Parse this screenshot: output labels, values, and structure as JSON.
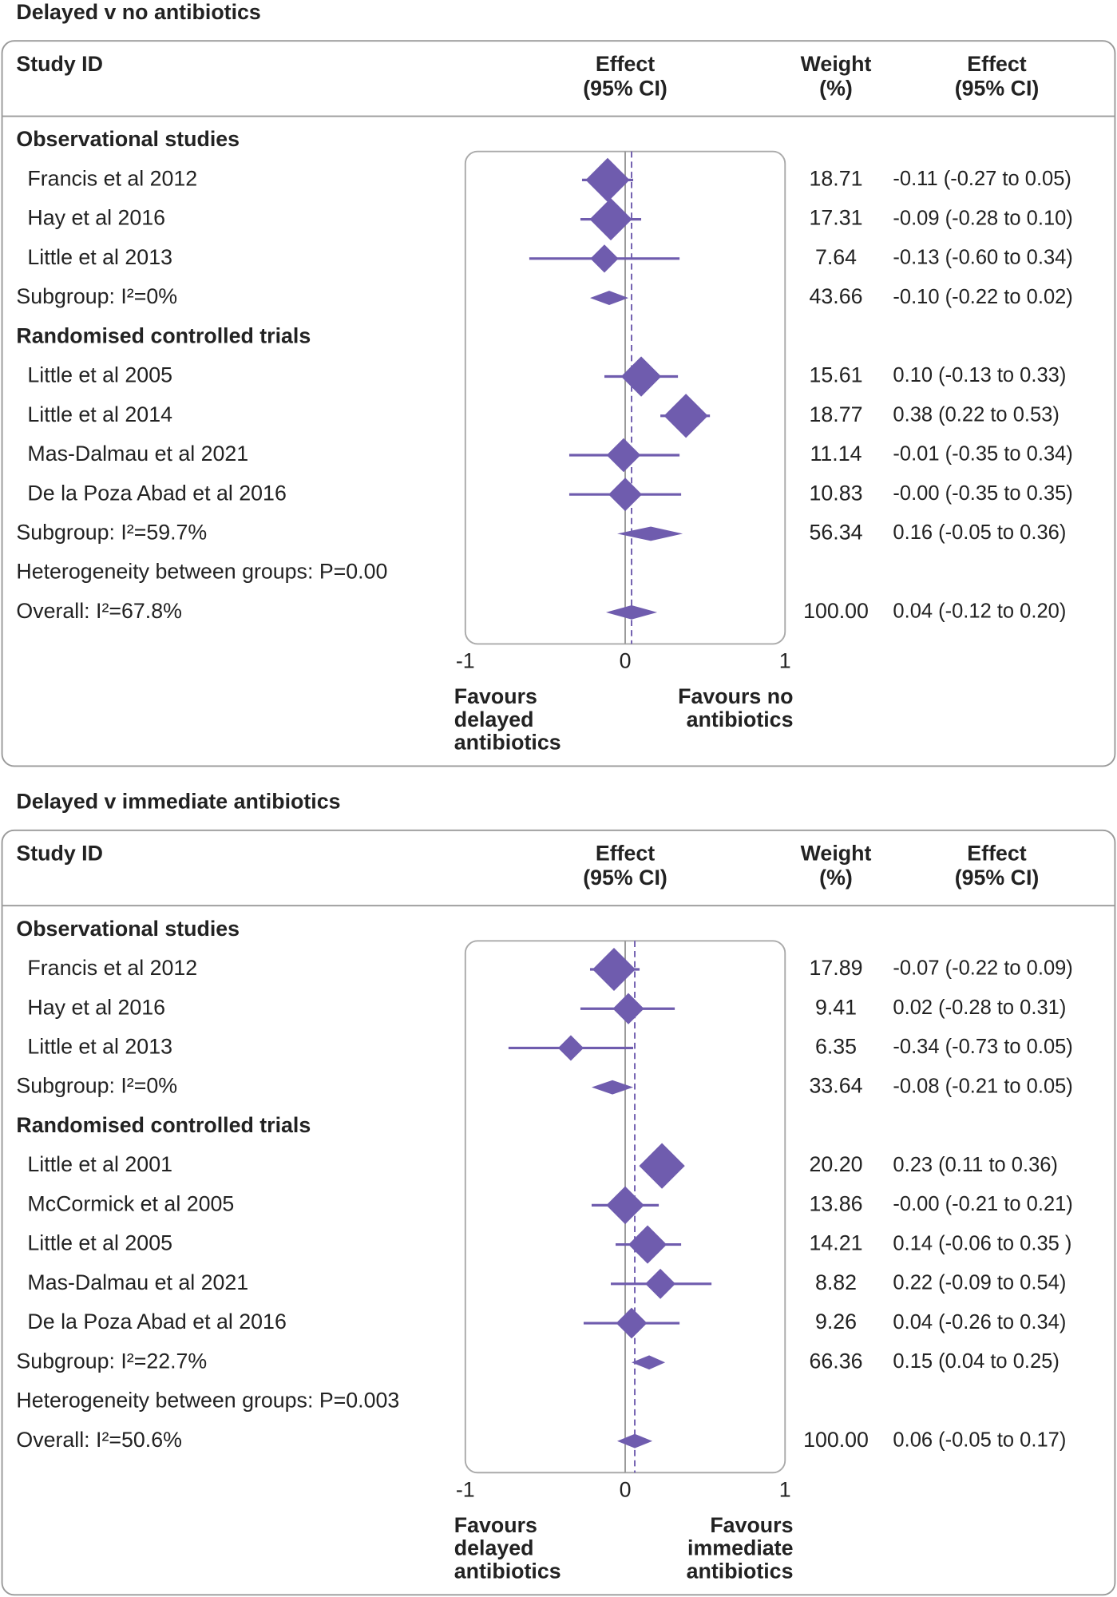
{
  "chart_data": [
    {
      "type": "forest",
      "title": "Delayed v no antibiotics",
      "color": "#6f5cae",
      "headers": [
        [
          "Study ID"
        ],
        [
          "Effect",
          "(95% CI)"
        ],
        [
          "Weight",
          "(%)"
        ],
        [
          "Effect",
          "(95% CI)"
        ]
      ],
      "xlim": [
        -1,
        1
      ],
      "xticks": [
        -1,
        0,
        1
      ],
      "favours_left": [
        "Favours",
        "delayed",
        "antibiotics"
      ],
      "favours_right": [
        "Favours no",
        "antibiotics"
      ],
      "rows": [
        {
          "kind": "heading",
          "label": "Observational studies"
        },
        {
          "kind": "study",
          "label": "Francis et al 2012",
          "value": -0.11,
          "lower": -0.27,
          "upper": 0.05,
          "weight": 18.71,
          "effect_label": "-0.11 (-0.27 to 0.05)"
        },
        {
          "kind": "study",
          "label": "Hay et al 2016",
          "value": -0.09,
          "lower": -0.28,
          "upper": 0.1,
          "weight": 17.31,
          "effect_label": "-0.09 (-0.28 to 0.10)"
        },
        {
          "kind": "study",
          "label": "Little et al 2013",
          "value": -0.13,
          "lower": -0.6,
          "upper": 0.34,
          "weight": 7.64,
          "effect_label": "-0.13 (-0.60 to 0.34)"
        },
        {
          "kind": "subgroup",
          "label": "Subgroup: I²=0%",
          "value": -0.1,
          "lower": -0.22,
          "upper": 0.02,
          "weight": 43.66,
          "effect_label": "-0.10 (-0.22 to 0.02)"
        },
        {
          "kind": "heading",
          "label": "Randomised controlled trials"
        },
        {
          "kind": "study",
          "label": "Little et al 2005",
          "value": 0.1,
          "lower": -0.13,
          "upper": 0.33,
          "weight": 15.61,
          "effect_label": "0.10 (-0.13 to 0.33)"
        },
        {
          "kind": "study",
          "label": "Little et al 2014",
          "value": 0.38,
          "lower": 0.22,
          "upper": 0.53,
          "weight": 18.77,
          "effect_label": "0.38 (0.22 to 0.53)"
        },
        {
          "kind": "study",
          "label": "Mas-Dalmau et al 2021",
          "value": -0.01,
          "lower": -0.35,
          "upper": 0.34,
          "weight": 11.14,
          "effect_label": "-0.01 (-0.35 to 0.34)"
        },
        {
          "kind": "study",
          "label": "De la Poza Abad et al 2016",
          "value": 0,
          "lower": -0.35,
          "upper": 0.35,
          "weight": 10.83,
          "effect_label": "-0.00 (-0.35 to 0.35)"
        },
        {
          "kind": "subgroup",
          "label": "Subgroup: I²=59.7%",
          "value": 0.16,
          "lower": -0.05,
          "upper": 0.36,
          "weight": 56.34,
          "effect_label": "0.16 (-0.05 to 0.36)"
        },
        {
          "kind": "text",
          "label": "Heterogeneity between groups: P=0.00"
        },
        {
          "kind": "overall",
          "label": "Overall: I²=67.8%",
          "value": 0.04,
          "lower": -0.12,
          "upper": 0.2,
          "weight": {
            "value": 100,
            "label": "100.00"
          },
          "effect_label": "0.04 (-0.12 to 0.20)"
        }
      ]
    },
    {
      "type": "forest",
      "title": "Delayed v immediate antibiotics",
      "color": "#6f5cae",
      "headers": [
        [
          "Study ID"
        ],
        [
          "Effect",
          "(95% CI)"
        ],
        [
          "Weight",
          "(%)"
        ],
        [
          "Effect",
          "(95% CI)"
        ]
      ],
      "xlim": [
        -1,
        1
      ],
      "xticks": [
        -1,
        0,
        1
      ],
      "favours_left": [
        "Favours",
        "delayed",
        "antibiotics"
      ],
      "favours_right": [
        "Favours",
        "immediate",
        "antibiotics"
      ],
      "rows": [
        {
          "kind": "heading",
          "label": "Observational studies"
        },
        {
          "kind": "study",
          "label": "Francis et al 2012",
          "value": -0.07,
          "lower": -0.22,
          "upper": 0.09,
          "weight": 17.89,
          "effect_label": "-0.07 (-0.22 to 0.09)"
        },
        {
          "kind": "study",
          "label": "Hay et al 2016",
          "value": 0.02,
          "lower": -0.28,
          "upper": 0.31,
          "weight": 9.41,
          "effect_label": "0.02 (-0.28 to 0.31)"
        },
        {
          "kind": "study",
          "label": "Little et al 2013",
          "value": -0.34,
          "lower": -0.73,
          "upper": 0.05,
          "weight": 6.35,
          "effect_label": "-0.34 (-0.73 to 0.05)"
        },
        {
          "kind": "subgroup",
          "label": "Subgroup: I²=0%",
          "value": -0.08,
          "lower": -0.21,
          "upper": 0.05,
          "weight": 33.64,
          "effect_label": "-0.08 (-0.21 to 0.05)"
        },
        {
          "kind": "heading",
          "label": "Randomised controlled trials"
        },
        {
          "kind": "study",
          "label": "Little et al 2001",
          "value": 0.23,
          "lower": 0.11,
          "upper": 0.36,
          "weight": {
            "value": 20.2,
            "label": "20.20"
          },
          "effect_label": "0.23 (0.11 to 0.36)"
        },
        {
          "kind": "study",
          "label": "McCormick et al 2005",
          "value": 0,
          "lower": -0.21,
          "upper": 0.21,
          "weight": 13.86,
          "effect_label": "-0.00 (-0.21 to 0.21)"
        },
        {
          "kind": "study",
          "label": "Little et al 2005",
          "value": 0.14,
          "lower": -0.06,
          "upper": 0.35,
          "weight": 14.21,
          "effect_label": "0.14 (-0.06 to 0.35 )"
        },
        {
          "kind": "study",
          "label": "Mas-Dalmau et al 2021",
          "value": 0.22,
          "lower": -0.09,
          "upper": 0.54,
          "weight": 8.82,
          "effect_label": "0.22 (-0.09 to 0.54)"
        },
        {
          "kind": "study",
          "label": "De la Poza Abad et al 2016",
          "value": 0.04,
          "lower": -0.26,
          "upper": 0.34,
          "weight": 9.26,
          "effect_label": "0.04 (-0.26 to 0.34)"
        },
        {
          "kind": "subgroup",
          "label": "Subgroup: I²=22.7%",
          "value": 0.15,
          "lower": 0.04,
          "upper": 0.25,
          "weight": 66.36,
          "effect_label": "0.15 (0.04 to 0.25)"
        },
        {
          "kind": "text",
          "label": "Heterogeneity between groups: P=0.003"
        },
        {
          "kind": "overall",
          "label": "Overall: I²=50.6%",
          "value": 0.06,
          "lower": -0.05,
          "upper": 0.17,
          "weight": {
            "value": 100,
            "label": "100.00"
          },
          "effect_label": "0.06 (-0.05 to 0.17)"
        }
      ]
    }
  ]
}
